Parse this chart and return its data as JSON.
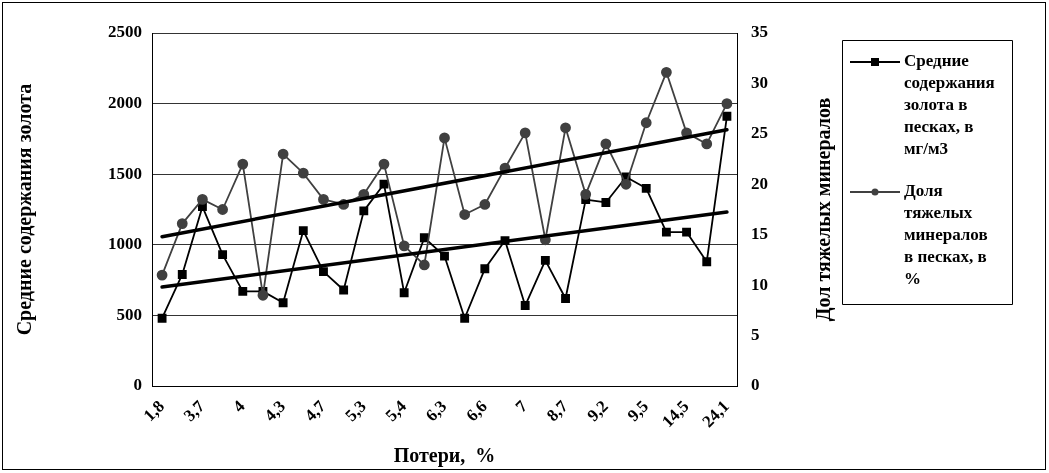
{
  "chart_data": {
    "type": "line",
    "xlabel": "Потери,  %",
    "ylabel": "Средние содержания золота",
    "y2label": "Дол тяжелых минералов",
    "categories": [
      "1,8",
      null,
      "3,7",
      null,
      "4",
      null,
      "4,3",
      null,
      "4,7",
      null,
      "5,3",
      null,
      "5,4",
      null,
      "6,3",
      null,
      "6,6",
      null,
      "7",
      null,
      "8,7",
      null,
      "9,2",
      null,
      "9,5",
      null,
      "14,5",
      null,
      "24,1"
    ],
    "series": [
      {
        "name": "Средние содержания золота в песках, в мг/м3",
        "color": "#000000",
        "marker": "square",
        "values": [
          480,
          790,
          1270,
          930,
          670,
          670,
          590,
          1100,
          810,
          680,
          1240,
          1430,
          660,
          1050,
          920,
          480,
          830,
          1030,
          570,
          890,
          620,
          1320,
          1300,
          1480,
          1400,
          1090,
          1090,
          880,
          1910
        ]
      },
      {
        "name": "Доля тяжелых минералов в песках, в %",
        "color": "#404040",
        "marker": "circle",
        "axis": "y2",
        "values": [
          11.0,
          16.1,
          18.5,
          17.5,
          22.0,
          9.0,
          23.0,
          21.1,
          18.5,
          18.0,
          19.0,
          22.0,
          13.9,
          12.0,
          24.6,
          17.0,
          18.0,
          21.6,
          25.1,
          14.5,
          25.6,
          19.0,
          24.0,
          20.0,
          26.1,
          31.1,
          25.1,
          24.0,
          28.0
        ]
      },
      {
        "type": "line",
        "color": "#000000",
        "marker": "none",
        "x": [
          "1,8",
          "24,1"
        ],
        "values": [
          701,
          1232
        ]
      },
      {
        "type": "line",
        "color": "#000000",
        "marker": "none",
        "axis": "y2",
        "x": [
          "1,8",
          "24,1"
        ],
        "values": [
          14.8,
          25.4
        ]
      }
    ],
    "ylim": [
      0,
      2500
    ],
    "yticks": [
      0,
      500,
      1000,
      1500,
      2000,
      2500
    ],
    "y2lim": [
      0,
      35
    ],
    "y2ticks": [
      0,
      5,
      10,
      15,
      20,
      25,
      30,
      35
    ],
    "grid": "y",
    "legend": "right",
    "line_style": "solid"
  }
}
